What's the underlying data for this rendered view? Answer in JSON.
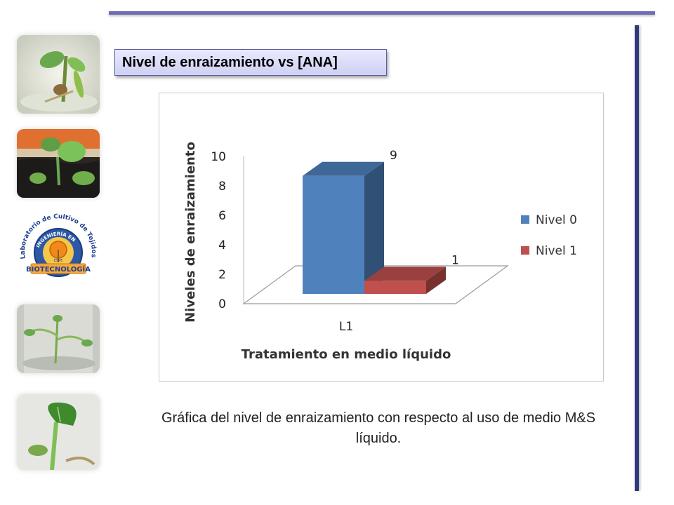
{
  "slide": {
    "title": "Nivel de enraizamiento vs [ANA]",
    "caption": "Gráfica del nivel de enraizamiento con respecto al uso de medio M&S líquido.",
    "logo": {
      "arc_text": "Laboratorio de Cultivo de Tejidos",
      "inner_text_top": "INGENIERÍA EN",
      "inner_text_bottom": "BIOTECNOLOGÍA",
      "small_text": "ESPE"
    },
    "thumbnails": [
      "plant-in-vitro-photo",
      "plant-soil-photo",
      "logo",
      "plant-in-vitro-photo-2",
      "plant-leaf-photo"
    ]
  },
  "colors": {
    "accent_rule": "#6e6eb5",
    "right_rule": "#2f3a78",
    "series_nivel0": "#4f81bd",
    "series_nivel1": "#c0504d"
  },
  "chart_data": {
    "type": "bar",
    "style": "3d-clustered-column",
    "categories": [
      "L1"
    ],
    "series": [
      {
        "name": "Nivel 0",
        "values": [
          9
        ],
        "label": "9"
      },
      {
        "name": "Nivel 1",
        "values": [
          1
        ],
        "label": "1"
      }
    ],
    "xlabel": "Tratamiento en medio líquido",
    "ylabel": "Niveles de enraizamiento",
    "ylim": [
      0,
      10
    ],
    "yticks": [
      "0",
      "2",
      "4",
      "6",
      "8",
      "10"
    ],
    "grid": false,
    "legend_position": "right"
  }
}
